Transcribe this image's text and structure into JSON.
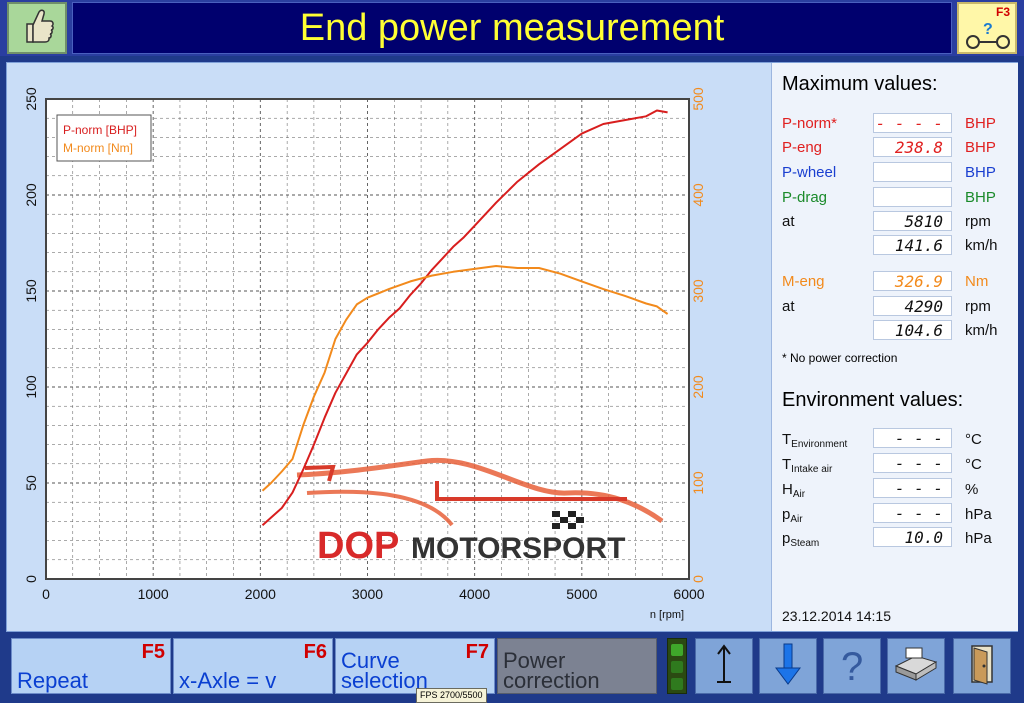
{
  "header": {
    "title": "End power measurement",
    "f3_key": "F3"
  },
  "chart_data": {
    "type": "line",
    "xlabel": "n [rpm]",
    "x_ticks": [
      0,
      1000,
      2000,
      3000,
      4000,
      5000,
      6000
    ],
    "y_left_ticks": [
      0,
      50,
      100,
      150,
      200,
      250
    ],
    "y_right_ticks": [
      0,
      100,
      200,
      300,
      400,
      500
    ],
    "xlim": [
      0,
      6000
    ],
    "ylim_left": [
      0,
      250
    ],
    "ylim_right": [
      0,
      500
    ],
    "grid": true,
    "legend_position": "top-left",
    "series": [
      {
        "name": "P-norm [BHP]",
        "axis": "left",
        "color": "#d81e1e",
        "x": [
          2020,
          2100,
          2200,
          2300,
          2400,
          2500,
          2600,
          2700,
          2800,
          2900,
          3000,
          3100,
          3200,
          3300,
          3400,
          3500,
          3600,
          3700,
          3800,
          3900,
          4000,
          4200,
          4400,
          4600,
          4800,
          5000,
          5200,
          5400,
          5600,
          5700,
          5800
        ],
        "y": [
          28,
          32,
          37,
          45,
          57,
          70,
          84,
          97,
          107,
          117,
          123,
          130,
          136,
          141,
          148,
          154,
          161,
          167,
          173,
          178,
          184,
          196,
          207,
          216,
          224,
          232,
          237,
          239,
          241,
          244,
          243
        ]
      },
      {
        "name": "M-norm [Nm]",
        "axis": "right",
        "color": "#f28a1c",
        "x": [
          2020,
          2100,
          2200,
          2300,
          2400,
          2500,
          2600,
          2700,
          2800,
          2900,
          3000,
          3200,
          3400,
          3600,
          3800,
          4000,
          4200,
          4400,
          4600,
          4800,
          5000,
          5200,
          5400,
          5600,
          5700,
          5800
        ],
        "y": [
          92,
          100,
          112,
          125,
          160,
          190,
          215,
          250,
          270,
          286,
          293,
          302,
          310,
          316,
          320,
          323,
          326,
          324,
          324,
          318,
          310,
          302,
          295,
          287,
          284,
          276
        ]
      }
    ]
  },
  "watermark": {
    "brand_left": "DOP",
    "brand_right": "MOTORSPORT"
  },
  "max_values": {
    "heading": "Maximum values:",
    "rows": [
      {
        "label": "P-norm*",
        "value": "- - - - .",
        "unit": "BHP",
        "color": "red"
      },
      {
        "label": "P-eng",
        "value": "238.8",
        "unit": "BHP",
        "color": "red"
      },
      {
        "label": "P-wheel",
        "value": "",
        "unit": "BHP",
        "color": "blue"
      },
      {
        "label": "P-drag",
        "value": "",
        "unit": "BHP",
        "color": "green"
      },
      {
        "label": "at",
        "value": "5810",
        "unit": "rpm",
        "color": "black"
      },
      {
        "label": "",
        "value": "141.6",
        "unit": "km/h",
        "color": "black"
      },
      {
        "label": "M-eng",
        "value": "326.9",
        "unit": "Nm",
        "color": "orange"
      },
      {
        "label": "at",
        "value": "4290",
        "unit": "rpm",
        "color": "black"
      },
      {
        "label": "",
        "value": "104.6",
        "unit": "km/h",
        "color": "black"
      }
    ],
    "note": "* No power correction"
  },
  "environment": {
    "heading": "Environment values:",
    "rows": [
      {
        "symbol": "T",
        "sub": "Environment",
        "value": "- - - -.-",
        "unit": "°C"
      },
      {
        "symbol": "T",
        "sub": "Intake air",
        "value": "- - - -.-",
        "unit": "°C"
      },
      {
        "symbol": "H",
        "sub": "Air",
        "value": "- - - -.-",
        "unit": "%"
      },
      {
        "symbol": "p",
        "sub": "Air",
        "value": "- - - -.-",
        "unit": "hPa"
      },
      {
        "symbol": "p",
        "sub": "Steam",
        "value": "10.0",
        "unit": "hPa"
      }
    ]
  },
  "datetime": "23.12.2014   14:15",
  "bottom": {
    "f5": {
      "key": "F5",
      "label": "Repeat"
    },
    "f6": {
      "key": "F6",
      "label": "x-Axle = v"
    },
    "f7": {
      "key": "F7",
      "label_line1": "Curve",
      "label_line2": "selection"
    },
    "power_correction": {
      "label_line1": "Power",
      "label_line2": "correction"
    },
    "fps": "FPS 2700/5500"
  },
  "icons": [
    "thumbs-up-icon",
    "help-car-icon",
    "marker-icon",
    "down-arrow-icon",
    "help-icon",
    "printer-icon",
    "exit-door-icon"
  ]
}
